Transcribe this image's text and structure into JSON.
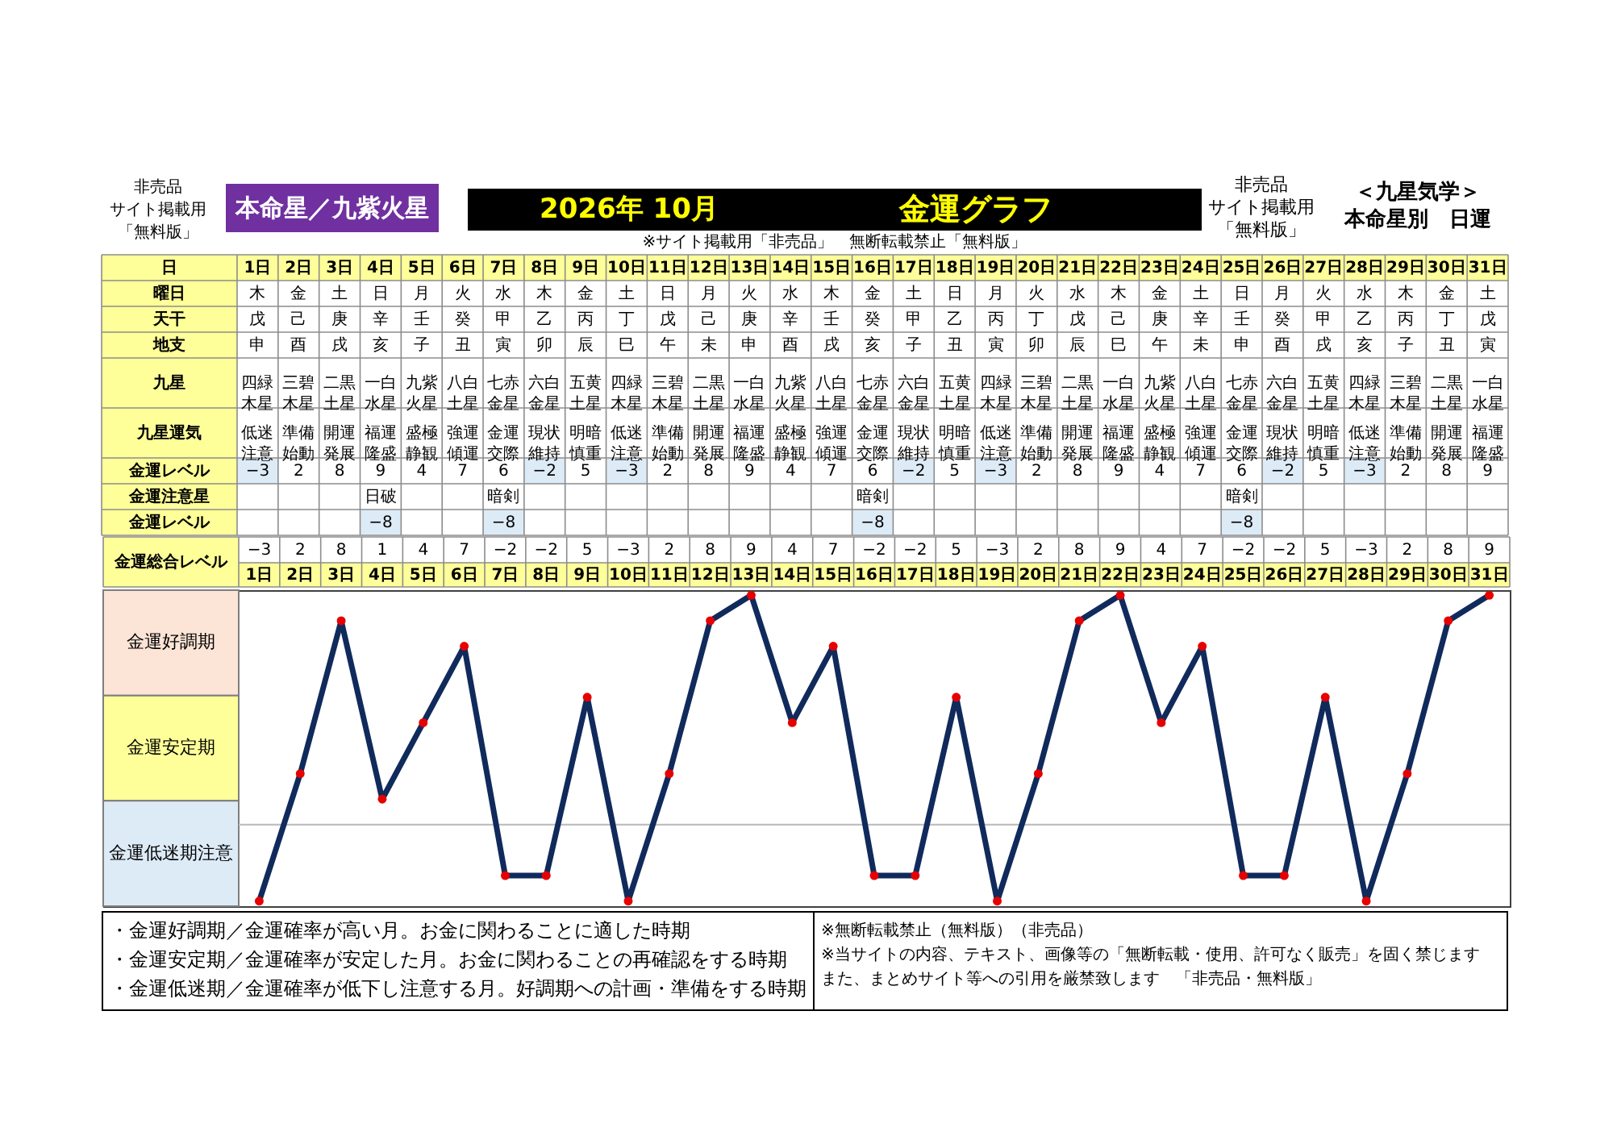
{
  "chart_data": [
    {
      "type": "heatmap",
      "title": "金運グラフ",
      "subtitle": "2026年 10月",
      "annotations": [
        "非売品",
        "サイト掲載用",
        "「無料版」",
        "本命星／九紫火星",
        "非売品",
        "サイト掲載用",
        "「無料版」",
        "＜九星気学＞",
        "本命星別　日運",
        "※サイト掲載用「非売品」　無断転載禁止「無料版」"
      ],
      "xlabel": "日",
      "categories": [
        "1日",
        "2日",
        "3日",
        "4日",
        "5日",
        "6日",
        "7日",
        "8日",
        "9日",
        "10日",
        "11日",
        "12日",
        "13日",
        "14日",
        "15日",
        "16日",
        "17日",
        "18日",
        "19日",
        "20日",
        "21日",
        "22日",
        "23日",
        "24日",
        "25日",
        "26日",
        "27日",
        "28日",
        "29日",
        "30日",
        "31日"
      ],
      "y_categories": [
        "曜日",
        "天干",
        "地支",
        "九星",
        "九星運気",
        "金運レベル",
        "金運注意星",
        "金運レベル"
      ],
      "cells": [
        [
          null,
          null,
          null,
          null,
          null,
          null,
          null,
          null,
          null,
          null,
          null,
          null,
          null,
          null,
          null,
          null,
          null,
          null,
          null,
          null,
          null,
          null,
          null,
          null,
          null,
          null,
          null,
          null,
          null,
          null,
          null
        ],
        [
          null,
          null,
          null,
          null,
          null,
          null,
          null,
          null,
          null,
          null,
          null,
          null,
          null,
          null,
          null,
          null,
          null,
          null,
          null,
          null,
          null,
          null,
          null,
          null,
          null,
          null,
          null,
          null,
          null,
          null,
          null
        ],
        [
          null,
          null,
          null,
          null,
          null,
          null,
          null,
          null,
          null,
          null,
          null,
          null,
          null,
          null,
          null,
          null,
          null,
          null,
          null,
          null,
          null,
          null,
          null,
          null,
          null,
          null,
          null,
          null,
          null,
          null,
          null
        ],
        [
          null,
          null,
          null,
          null,
          null,
          null,
          null,
          null,
          null,
          null,
          null,
          null,
          null,
          null,
          null,
          null,
          null,
          null,
          null,
          null,
          null,
          null,
          null,
          null,
          null,
          null,
          null,
          null,
          null,
          null,
          null
        ],
        [
          null,
          null,
          null,
          null,
          null,
          null,
          null,
          null,
          null,
          null,
          null,
          null,
          null,
          null,
          null,
          null,
          null,
          null,
          null,
          null,
          null,
          null,
          null,
          null,
          null,
          null,
          null,
          null,
          null,
          null,
          null
        ],
        [
          -3,
          2,
          8,
          9,
          4,
          7,
          6,
          -2,
          5,
          -3,
          2,
          8,
          9,
          4,
          7,
          6,
          -2,
          5,
          -3,
          2,
          8,
          9,
          4,
          7,
          6,
          -2,
          5,
          -3,
          2,
          8,
          9
        ],
        [
          null,
          null,
          null,
          null,
          null,
          null,
          null,
          null,
          null,
          null,
          null,
          null,
          null,
          null,
          null,
          null,
          null,
          null,
          null,
          null,
          null,
          null,
          null,
          null,
          null,
          null,
          null,
          null,
          null,
          null,
          null
        ],
        [
          null,
          null,
          null,
          -8,
          null,
          null,
          -8,
          null,
          null,
          null,
          null,
          null,
          null,
          null,
          null,
          -8,
          null,
          null,
          null,
          null,
          null,
          null,
          null,
          null,
          -8,
          null,
          null,
          null,
          null,
          null,
          null
        ]
      ],
      "cell_labels": [
        [
          "木",
          "金",
          "土",
          "日",
          "月",
          "火",
          "水",
          "木",
          "金",
          "土",
          "日",
          "月",
          "火",
          "水",
          "木",
          "金",
          "土",
          "日",
          "月",
          "火",
          "水",
          "木",
          "金",
          "土",
          "日",
          "月",
          "火",
          "水",
          "木",
          "金",
          "土"
        ],
        [
          "戊",
          "己",
          "庚",
          "辛",
          "壬",
          "癸",
          "甲",
          "乙",
          "丙",
          "丁",
          "戊",
          "己",
          "庚",
          "辛",
          "壬",
          "癸",
          "甲",
          "乙",
          "丙",
          "丁",
          "戊",
          "己",
          "庚",
          "辛",
          "壬",
          "癸",
          "甲",
          "乙",
          "丙",
          "丁",
          "戊"
        ],
        [
          "申",
          "酉",
          "戌",
          "亥",
          "子",
          "丑",
          "寅",
          "卯",
          "辰",
          "巳",
          "午",
          "未",
          "申",
          "酉",
          "戌",
          "亥",
          "子",
          "丑",
          "寅",
          "卯",
          "辰",
          "巳",
          "午",
          "未",
          "申",
          "酉",
          "戌",
          "亥",
          "子",
          "丑",
          "寅"
        ],
        [
          "四緑木星",
          "三碧木星",
          "二黒土星",
          "一白水星",
          "九紫火星",
          "八白土星",
          "七赤金星",
          "六白金星",
          "五黄土星",
          "四緑木星",
          "三碧木星",
          "二黒土星",
          "一白水星",
          "九紫火星",
          "八白土星",
          "七赤金星",
          "六白金星",
          "五黄土星",
          "四緑木星",
          "三碧木星",
          "二黒土星",
          "一白水星",
          "九紫火星",
          "八白土星",
          "七赤金星",
          "六白金星",
          "五黄土星",
          "四緑木星",
          "三碧木星",
          "二黒土星",
          "一白水星"
        ],
        [
          "低迷注意",
          "準備始動",
          "開運発展",
          "福運隆盛",
          "盛極静観",
          "強運傾運",
          "金運交際",
          "現状維持",
          "明暗慎重",
          "低迷注意",
          "準備始動",
          "開運発展",
          "福運隆盛",
          "盛極静観",
          "強運傾運",
          "金運交際",
          "現状維持",
          "明暗慎重",
          "低迷注意",
          "準備始動",
          "開運発展",
          "福運隆盛",
          "盛極静観",
          "強運傾運",
          "金運交際",
          "現状維持",
          "明暗慎重",
          "低迷注意",
          "準備始動",
          "開運発展",
          "福運隆盛"
        ],
        [
          "−3",
          "2",
          "8",
          "9",
          "4",
          "7",
          "6",
          "−2",
          "5",
          "−3",
          "2",
          "8",
          "9",
          "4",
          "7",
          "6",
          "−2",
          "5",
          "−3",
          "2",
          "8",
          "9",
          "4",
          "7",
          "6",
          "−2",
          "5",
          "−3",
          "2",
          "8",
          "9"
        ],
        [
          null,
          null,
          null,
          "日破",
          null,
          null,
          "暗剣",
          null,
          null,
          null,
          null,
          null,
          null,
          null,
          null,
          "暗剣",
          null,
          null,
          null,
          null,
          null,
          null,
          null,
          null,
          "暗剣",
          null,
          null,
          null,
          null,
          null,
          null
        ],
        [
          null,
          null,
          null,
          "−8",
          null,
          null,
          "−8",
          null,
          null,
          null,
          null,
          null,
          null,
          null,
          null,
          "−8",
          null,
          null,
          null,
          null,
          null,
          null,
          null,
          null,
          "−8",
          null,
          null,
          null,
          null,
          null,
          null
        ]
      ]
    },
    {
      "type": "line",
      "categories": [
        "1日",
        "2日",
        "3日",
        "4日",
        "5日",
        "6日",
        "7日",
        "8日",
        "9日",
        "10日",
        "11日",
        "12日",
        "13日",
        "14日",
        "15日",
        "16日",
        "17日",
        "18日",
        "19日",
        "20日",
        "21日",
        "22日",
        "23日",
        "24日",
        "25日",
        "26日",
        "27日",
        "28日",
        "29日",
        "30日",
        "31日"
      ],
      "series": [
        {
          "type": "line",
          "color": "#102a5c",
          "values": [
            -3,
            2,
            8,
            1,
            4,
            7,
            -2,
            -2,
            5,
            -3,
            2,
            8,
            9,
            4,
            7,
            -2,
            -2,
            5,
            -3,
            2,
            8,
            9,
            4,
            7,
            -2,
            -2,
            5,
            -3,
            2,
            8,
            9
          ]
        },
        {
          "type": "scatter",
          "color": "#e60000",
          "marker": "circle",
          "values": [
            -3,
            2,
            8,
            1,
            4,
            7,
            -2,
            -2,
            5,
            -3,
            2,
            8,
            9,
            4,
            7,
            -2,
            -2,
            5,
            -3,
            2,
            8,
            9,
            4,
            7,
            -2,
            -2,
            5,
            -3,
            2,
            8,
            9
          ],
          "value_labels": [
            null,
            null,
            null,
            null,
            null,
            null,
            null,
            null,
            null,
            null,
            null,
            null,
            null,
            null,
            null,
            null,
            null,
            null,
            null,
            null,
            null,
            null,
            null,
            null,
            null,
            null,
            null,
            null,
            null,
            null,
            null
          ]
        }
      ],
      "data_labels": true,
      "tick_labels": "x",
      "ylim": [
        -3.2,
        9.2
      ],
      "ref_lines": [
        {
          "axis": "y",
          "value": 0,
          "color": "#bfbfbf"
        }
      ],
      "annotations": [
        "金運総合レベル",
        "金運好調期",
        "金運安定期",
        "金運低迷期注意",
        "・金運好調期／金運確率が高い月。お金に関わることに適した時期",
        "・金運安定期／金運確率が安定した月。お金に関わることの再確認をする時期",
        "・金運低迷期／金運確率が低下し注意する月。好調期への計画・準備をする時期",
        "※無断転載禁止（無料版）（非売品）",
        "※当サイトの内容、テキスト、画像等の「無断転載・使用、許可なく販売」を固く禁じます",
        "また、まとめサイト等への引用を厳禁致します　「非売品・無料版」"
      ]
    }
  ]
}
